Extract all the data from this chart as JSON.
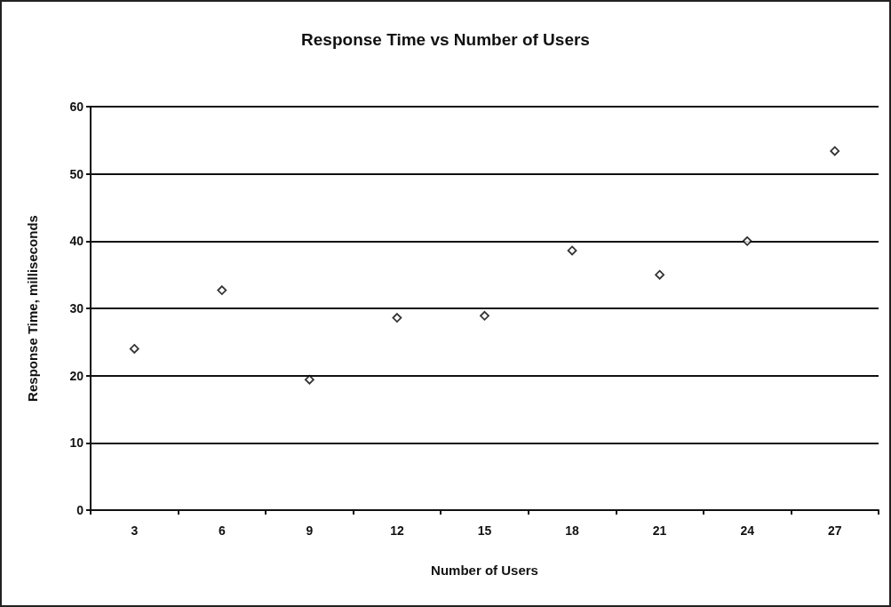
{
  "chart_data": {
    "type": "scatter",
    "title": "Response Time vs Number of Users",
    "xlabel": "Number of Users",
    "ylabel": "Response Time, milliseconds",
    "categories": [
      "3",
      "6",
      "9",
      "12",
      "15",
      "18",
      "21",
      "24",
      "27"
    ],
    "series": [
      {
        "color": "#000000",
        "values": [
          24,
          32.7,
          19.4,
          28.6,
          28.9,
          38.6,
          35,
          40,
          53.4
        ]
      }
    ],
    "ylim": [
      0,
      60
    ],
    "yticks": [
      0,
      10,
      20,
      30,
      40,
      50,
      60
    ],
    "grid": "y",
    "marker": "diamond"
  }
}
